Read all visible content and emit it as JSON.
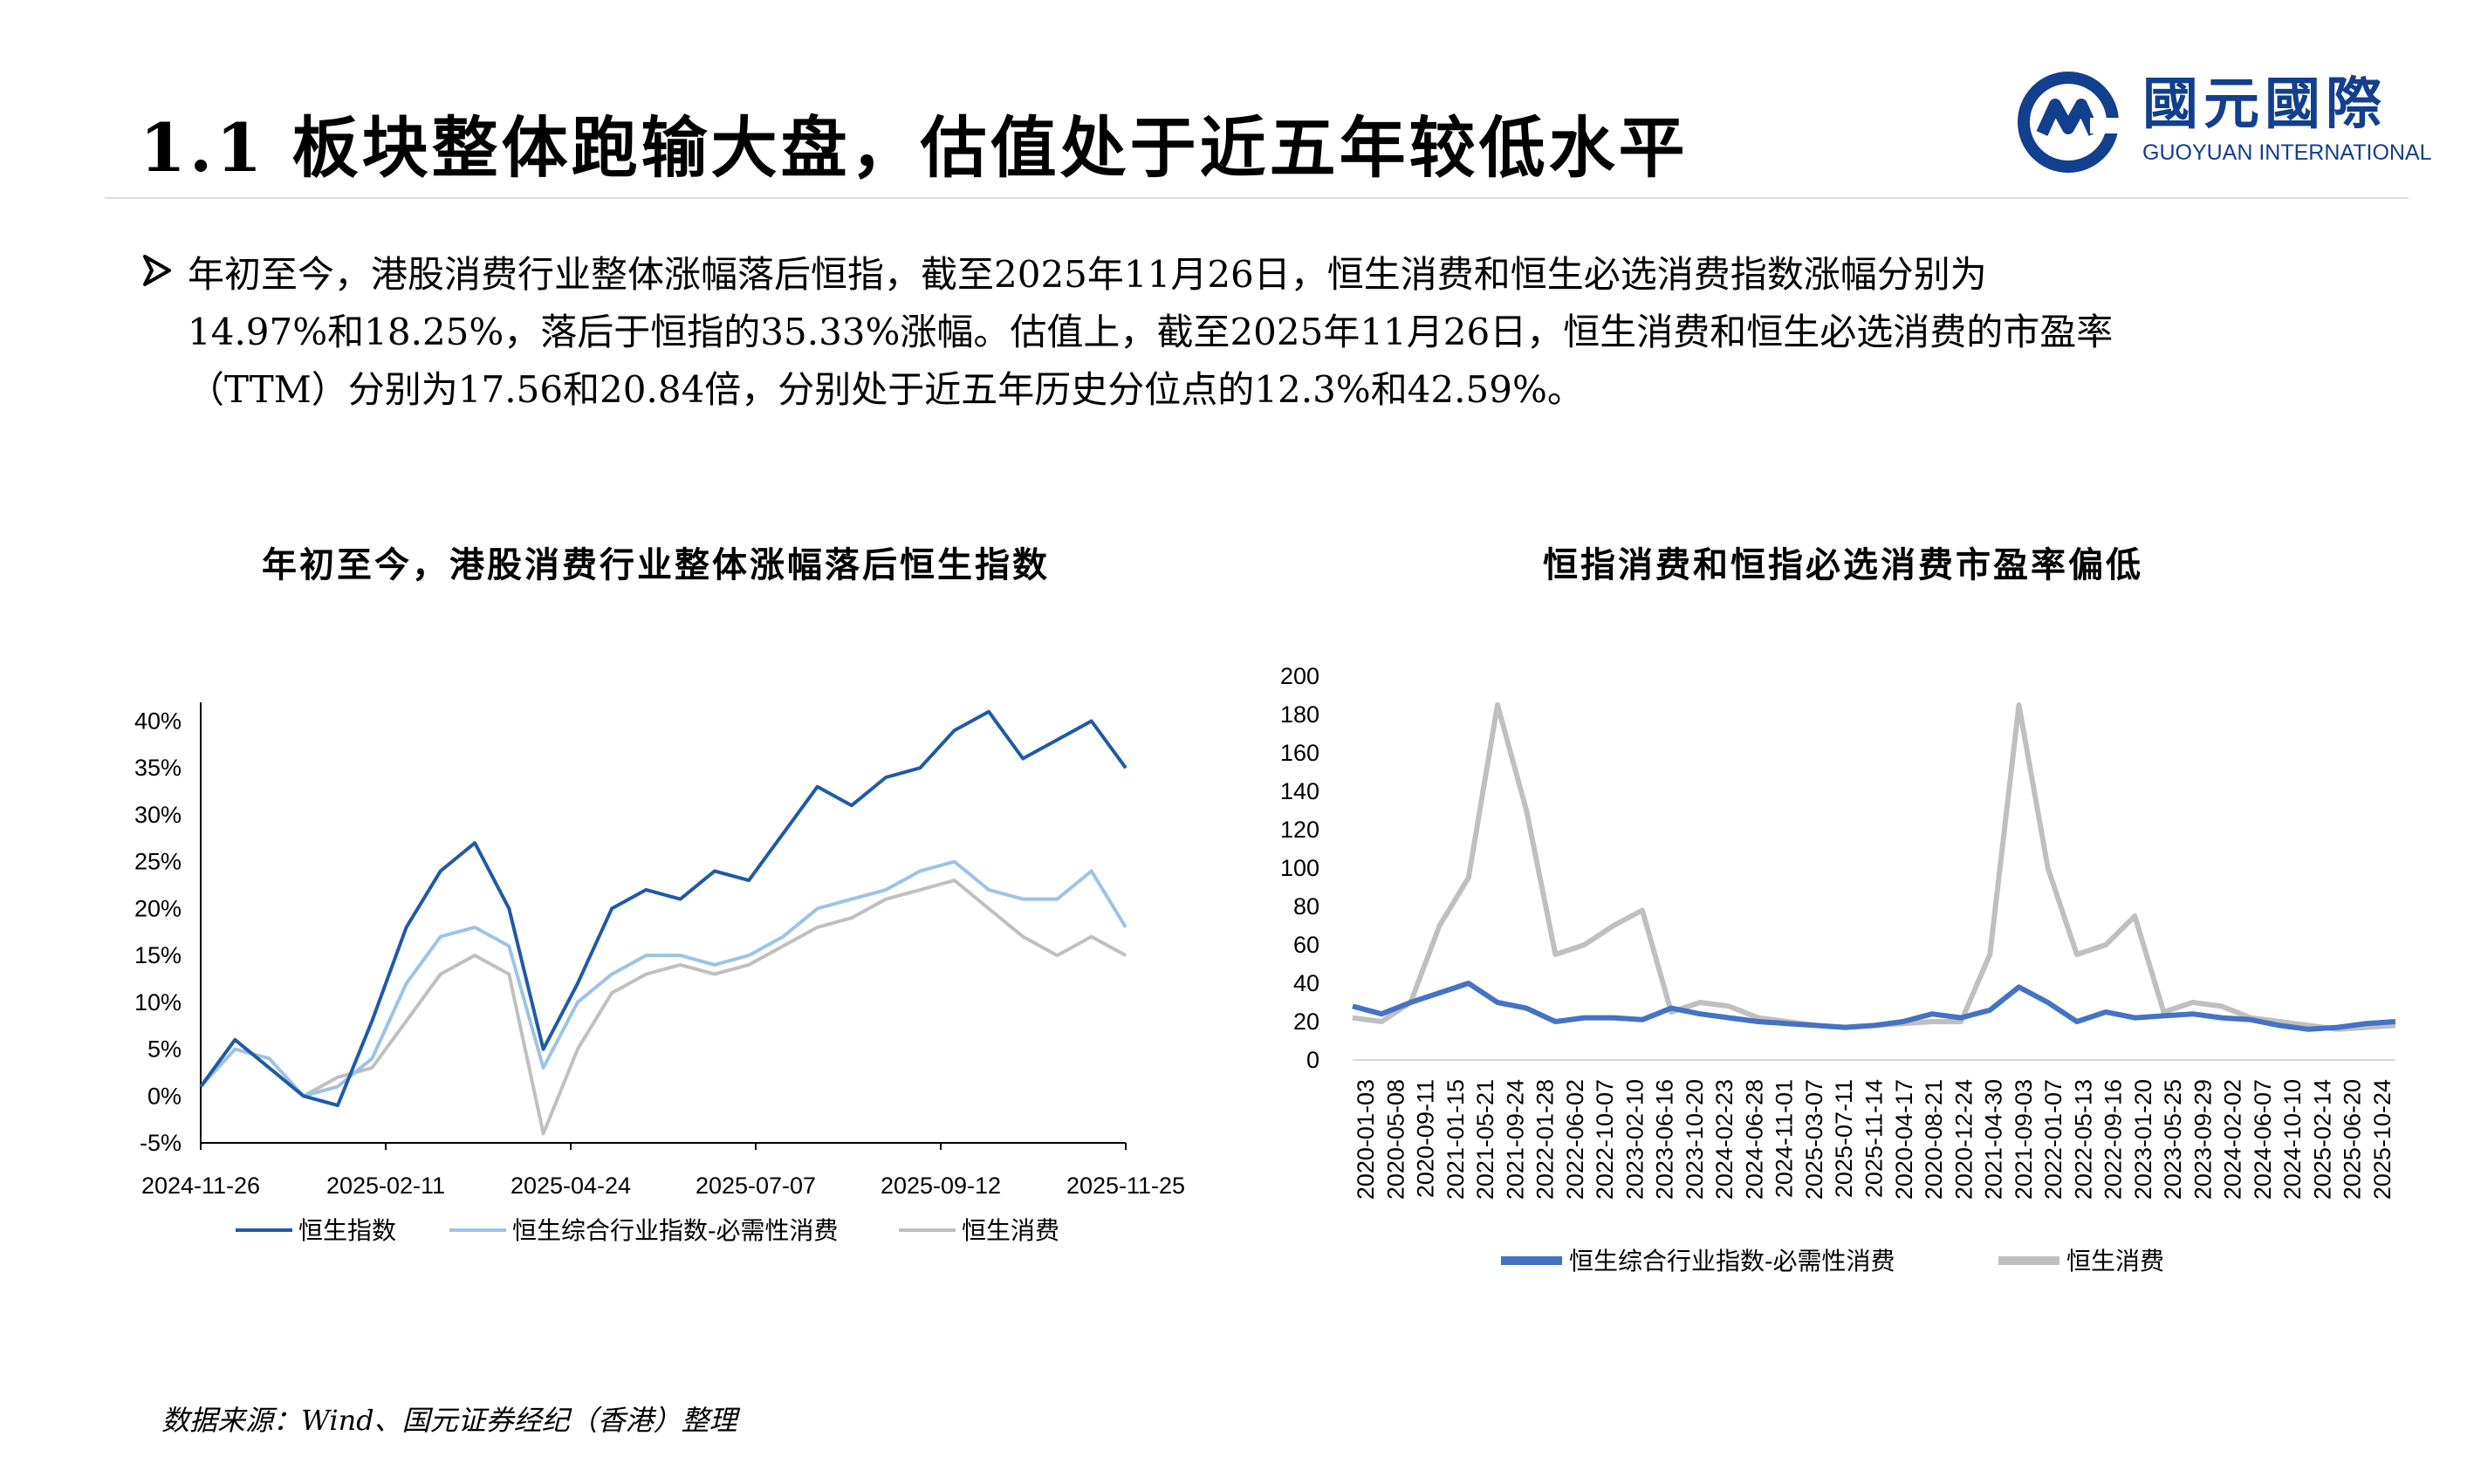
{
  "header": {
    "title": "1.1 板块整体跑输大盘，估值处于近五年较低水平",
    "logo_cn": "國元國際",
    "logo_en": "GUOYUAN INTERNATIONAL",
    "brand_color": "#123f8e"
  },
  "bullet": {
    "icon": "arrow-bullet-icon",
    "line1": "年初至今，港股消费行业整体涨幅落后恒指，截至2025年11月26日，恒生消费和恒生必选消费指数涨幅分别为",
    "line2": "14.97%和18.25%，落后于恒指的35.33%涨幅。估值上，截至2025年11月26日，恒生消费和恒生必选消费的市盈率",
    "line3": "（TTM）分别为17.56和20.84倍，分别处于近五年历史分位点的12.3%和42.59%。"
  },
  "source": "数据来源：Wind、国元证券经纪（香港）整理",
  "chart_data": [
    {
      "type": "line",
      "title": "年初至今，港股消费行业整体涨幅落后恒生指数",
      "y_tick_labels": [
        "-5%",
        "0%",
        "5%",
        "10%",
        "15%",
        "20%",
        "25%",
        "30%",
        "35%",
        "40%"
      ],
      "ylim": [
        -5,
        42
      ],
      "x_tick_labels": [
        "2024-11-26",
        "2025-02-11",
        "2025-04-24",
        "2025-07-07",
        "2025-09-12",
        "2025-11-25"
      ],
      "x": [
        "2024-11-26",
        "2024-12-10",
        "2024-12-24",
        "2025-01-07",
        "2025-01-21",
        "2025-02-04",
        "2025-02-18",
        "2025-03-04",
        "2025-03-18",
        "2025-04-01",
        "2025-04-07",
        "2025-04-15",
        "2025-04-29",
        "2025-05-13",
        "2025-05-27",
        "2025-06-10",
        "2025-06-24",
        "2025-07-08",
        "2025-07-22",
        "2025-08-05",
        "2025-08-19",
        "2025-09-02",
        "2025-09-16",
        "2025-09-30",
        "2025-10-14",
        "2025-10-28",
        "2025-11-11",
        "2025-11-25"
      ],
      "series": [
        {
          "name": "恒生指数",
          "color": "#1f5aa6",
          "values": [
            1,
            6,
            3,
            0,
            -1,
            8,
            18,
            24,
            27,
            20,
            5,
            12,
            20,
            22,
            21,
            24,
            23,
            28,
            33,
            31,
            34,
            35,
            39,
            41,
            36,
            38,
            40,
            35
          ]
        },
        {
          "name": "恒生综合行业指数-必需性消费",
          "color": "#9cc3e6",
          "values": [
            1,
            5,
            4,
            0,
            1,
            4,
            12,
            17,
            18,
            16,
            3,
            10,
            13,
            15,
            15,
            14,
            15,
            17,
            20,
            21,
            22,
            24,
            25,
            22,
            21,
            21,
            24,
            18
          ]
        },
        {
          "name": "恒生消费",
          "color": "#bfbfbf",
          "values": [
            1,
            6,
            3,
            0,
            2,
            3,
            8,
            13,
            15,
            13,
            -4,
            5,
            11,
            13,
            14,
            13,
            14,
            16,
            18,
            19,
            21,
            22,
            23,
            20,
            17,
            15,
            17,
            15
          ]
        }
      ]
    },
    {
      "type": "line",
      "title": "恒指消费和恒指必选消费市盈率偏低",
      "y_tick_labels": [
        "0",
        "20",
        "40",
        "60",
        "80",
        "100",
        "120",
        "140",
        "160",
        "180",
        "200"
      ],
      "ylim": [
        0,
        200
      ],
      "x_tick_labels": [
        "2020-01-03",
        "2020-05-08",
        "2020-09-11",
        "2021-01-15",
        "2021-05-21",
        "2021-09-24",
        "2022-01-28",
        "2022-06-02",
        "2022-10-07",
        "2023-02-10",
        "2023-06-16",
        "2023-10-20",
        "2024-02-23",
        "2024-06-28",
        "2024-11-01",
        "2025-03-07",
        "2025-07-11",
        "2025-11-14",
        "2020-04-17",
        "2020-08-21",
        "2020-12-24",
        "2021-04-30",
        "2021-09-03",
        "2022-01-07",
        "2022-05-13",
        "2022-09-16",
        "2023-01-20",
        "2023-05-25",
        "2023-09-29",
        "2024-02-02",
        "2024-06-07",
        "2024-10-10",
        "2025-02-14",
        "2025-06-20",
        "2025-10-24"
      ],
      "series": [
        {
          "name": "恒生综合行业指数-必需性消费",
          "color": "#4472c4",
          "values": [
            28,
            24,
            30,
            35,
            40,
            30,
            27,
            20,
            22,
            22,
            21,
            27,
            24,
            22,
            20,
            19,
            18,
            17,
            18,
            20,
            24,
            22,
            26,
            38,
            30,
            20,
            25,
            22,
            23,
            24,
            22,
            21,
            18,
            16,
            17,
            19,
            20
          ]
        },
        {
          "name": "恒生消费",
          "color": "#bfbfbf",
          "values": [
            22,
            20,
            30,
            70,
            95,
            185,
            130,
            55,
            60,
            70,
            78,
            25,
            30,
            28,
            22,
            20,
            18,
            17,
            18,
            19,
            20,
            20,
            55,
            185,
            100,
            55,
            60,
            75,
            25,
            30,
            28,
            22,
            20,
            18,
            16,
            17,
            18
          ]
        }
      ]
    }
  ]
}
